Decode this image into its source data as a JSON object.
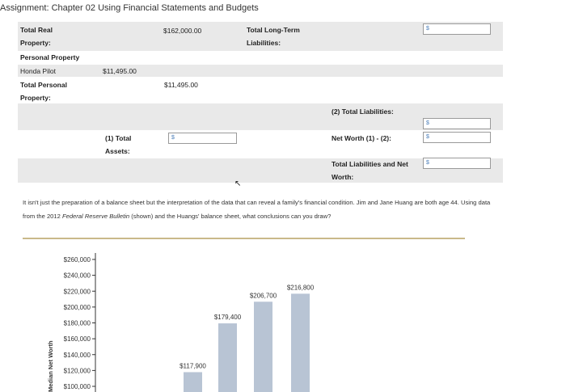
{
  "title": "Assignment: Chapter 02 Using Financial Statements and Budgets",
  "balance_sheet": {
    "total_real_property_label": "Total Real Property:",
    "total_real_property_value": "$162,000.00",
    "personal_property_label": "Personal Property",
    "honda_label": "Honda Pilot",
    "honda_value": "$11,495.00",
    "total_personal_property_label": "Total Personal Property:",
    "total_personal_property_value": "$11,495.00",
    "total_long_term_label": "Total Long-Term Liabilities:",
    "total_long_term_input": "$",
    "total_liabilities_label": "(2) Total Liabilities:",
    "total_liabilities_input": "$",
    "total_assets_label": "(1) Total Assets:",
    "total_assets_input": "$",
    "net_worth_label": "Net Worth (1) - (2):",
    "net_worth_input": "$",
    "total_liab_networth_label": "Total Liabilities and Net Worth:",
    "total_liab_networth_input": "$"
  },
  "paragraph": {
    "text_before": "It isn't just the preparation of a balance sheet but the interpretation of the data that can reveal a family's financial condition. Jim and Jane Huang are both age 44. Using data from the 2012 ",
    "italic": "Federal Reserve Bulletin",
    "text_after": " (shown) and the Huangs' balance sheet, what conclusions can you draw?"
  },
  "chart_data": {
    "type": "bar",
    "ylabel": "Median Net Worth",
    "y_ticks": [
      "$260,000",
      "$240,000",
      "$220,000",
      "$200,000",
      "$180,000",
      "$160,000",
      "$140,000",
      "$120,000",
      "$100,000"
    ],
    "ylim": [
      100000,
      260000
    ],
    "bars": [
      {
        "value": 117900,
        "label": "$117,900"
      },
      {
        "value": 179400,
        "label": "$179,400"
      },
      {
        "value": 206700,
        "label": "$206,700"
      },
      {
        "value": 216800,
        "label": "$216,800"
      }
    ],
    "bar_color": "#b8c4d4"
  }
}
